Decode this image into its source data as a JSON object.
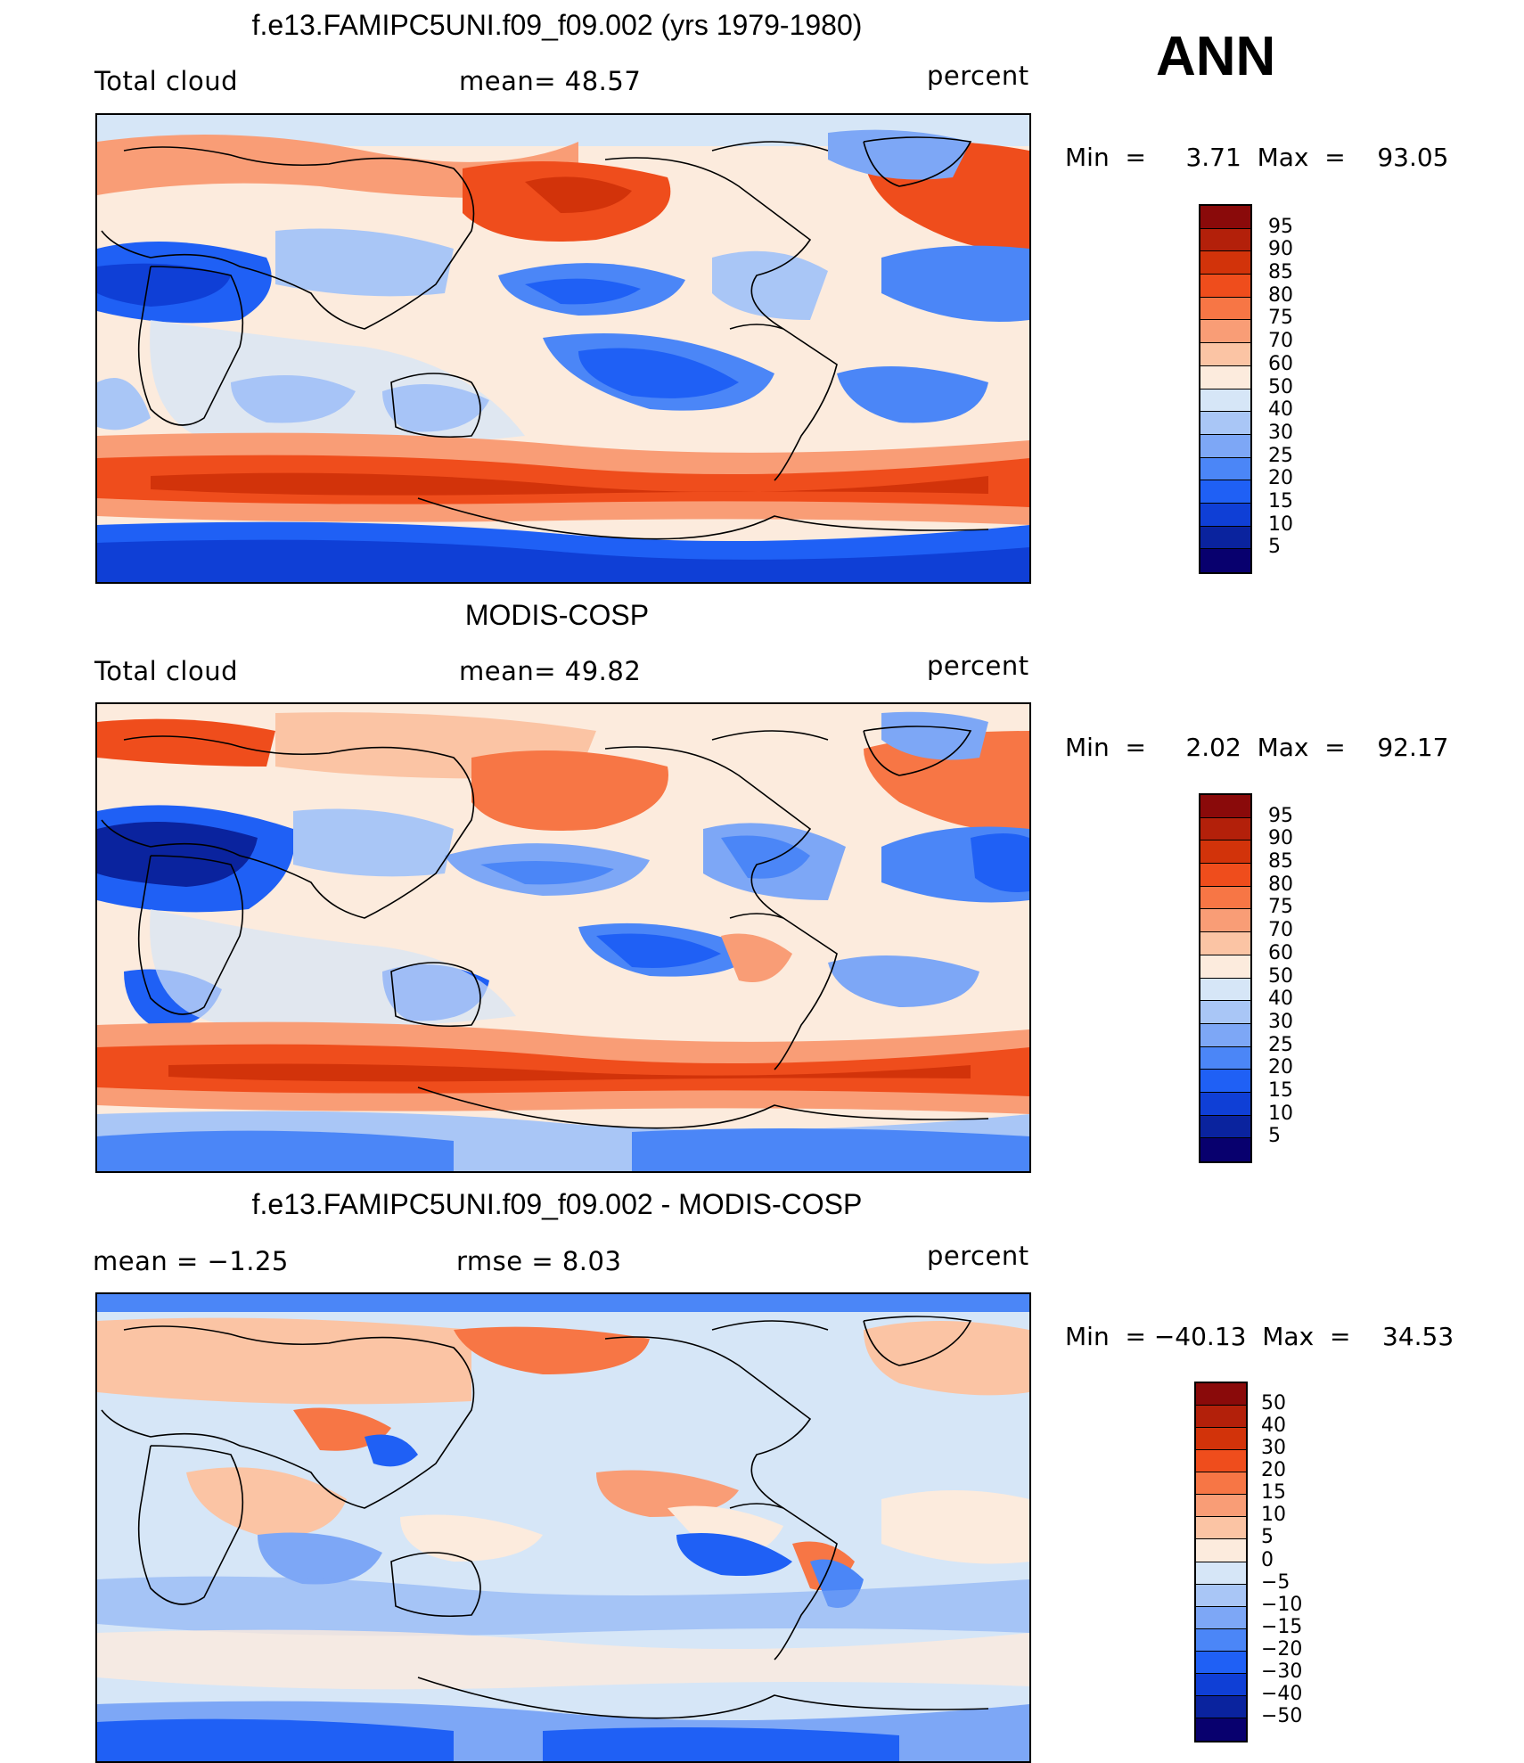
{
  "season": "ANN",
  "colors": {
    "abs_scale": [
      "#08006e",
      "#0a239e",
      "#0f3fd6",
      "#1f60f5",
      "#4b86f7",
      "#7da7f6",
      "#a9c6f6",
      "#d6e6f7",
      "#fcebdd",
      "#fbc4a4",
      "#f99d76",
      "#f77645",
      "#ef4d1c",
      "#d2330a",
      "#b3200a",
      "#8a0a0a"
    ],
    "diff_scale": [
      "#08006e",
      "#0a239e",
      "#0f3fd6",
      "#1f60f5",
      "#4b86f7",
      "#7da7f6",
      "#a9c6f6",
      "#d6e6f7",
      "#fcebdd",
      "#fbc4a4",
      "#f99d76",
      "#f77645",
      "#ef4d1c",
      "#d2330a",
      "#b3200a",
      "#8a0a0a"
    ]
  },
  "panels": [
    {
      "title": "f.e13.FAMIPC5UNI.f09_f09.002 (yrs 1979-1980)",
      "left_label": "Total cloud",
      "center_label": "mean=   48.57",
      "units": "percent",
      "minmax": "Min  =     3.71  Max  =    93.05",
      "colorbar_labels": [
        "95",
        "90",
        "85",
        "80",
        "75",
        "70",
        "60",
        "50",
        "40",
        "30",
        "25",
        "20",
        "15",
        "10",
        "5"
      ]
    },
    {
      "title": "MODIS-COSP",
      "left_label": "Total cloud",
      "center_label": "mean=   49.82",
      "units": "percent",
      "minmax": "Min  =     2.02  Max  =    92.17",
      "colorbar_labels": [
        "95",
        "90",
        "85",
        "80",
        "75",
        "70",
        "60",
        "50",
        "40",
        "30",
        "25",
        "20",
        "15",
        "10",
        "5"
      ]
    },
    {
      "title": "f.e13.FAMIPC5UNI.f09_f09.002 - MODIS-COSP",
      "left_label": "mean  =    −1.25",
      "center_label": "rmse  =     8.03",
      "units": "percent",
      "minmax": "Min  = −40.13  Max  =    34.53",
      "colorbar_labels": [
        "50",
        "40",
        "30",
        "20",
        "15",
        "10",
        "5",
        "0",
        "−5",
        "−10",
        "−15",
        "−20",
        "−30",
        "−40",
        "−50"
      ]
    }
  ]
}
